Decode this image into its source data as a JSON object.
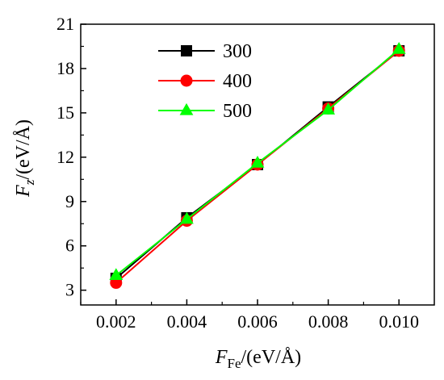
{
  "chart_data": {
    "type": "line",
    "x": [
      0.002,
      0.004,
      0.006,
      0.008,
      0.01
    ],
    "x_tick_labels": [
      "0.002",
      "0.004",
      "0.006",
      "0.008",
      "0.010"
    ],
    "y_ticks": [
      3,
      6,
      9,
      12,
      15,
      18,
      21
    ],
    "xlim": [
      0.001,
      0.011
    ],
    "ylim": [
      2,
      21
    ],
    "xlabel": {
      "main": "F",
      "sub": "Fe",
      "unit": "/(eV/Å)"
    },
    "ylabel": {
      "main": "F",
      "sub": "z",
      "unit": "/(eV/Å)"
    },
    "legend_position": "top-left",
    "grid": false,
    "series": [
      {
        "name": "300",
        "color": "#000000",
        "marker": "square",
        "values": [
          3.8,
          7.9,
          11.5,
          15.4,
          19.2
        ]
      },
      {
        "name": "400",
        "color": "#ff0000",
        "marker": "circle",
        "values": [
          3.5,
          7.7,
          11.5,
          15.3,
          19.2
        ]
      },
      {
        "name": "500",
        "color": "#00ff00",
        "marker": "triangle",
        "values": [
          4.0,
          7.8,
          11.6,
          15.2,
          19.3
        ]
      }
    ]
  }
}
